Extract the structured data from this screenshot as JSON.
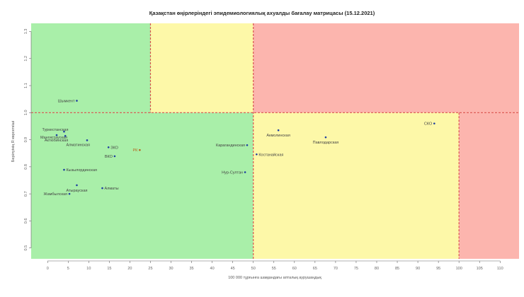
{
  "chart_data": {
    "type": "scatter",
    "title": "Қазақстан өңірлеріндегі эпидемиологиялық ахуалды бағалау матрицасы  (15.12.2021)",
    "xlabel": "100 000 тұрғынға шаққандағы апталық аурушаңдық",
    "ylabel": "Берілуінің R көрсеткіші",
    "xlim": [
      -4,
      114.6
    ],
    "ylim": [
      0.46,
      1.33
    ],
    "xticks": [
      0,
      5,
      10,
      15,
      20,
      25,
      30,
      35,
      40,
      45,
      50,
      55,
      60,
      65,
      70,
      75,
      80,
      85,
      90,
      95,
      100,
      105,
      110
    ],
    "yticks": [
      0.5,
      0.6,
      0.7,
      0.8,
      0.9,
      1.0,
      1.1,
      1.2,
      1.3
    ],
    "grid": false,
    "thresholds": {
      "r": 1.0,
      "x_upper": [
        25,
        50
      ],
      "x_lower": [
        50,
        100
      ]
    },
    "zone_colors": {
      "green": "#a9efa9",
      "yellow": "#fdf8a8",
      "red": "#fcb5ae",
      "threshold_line": "#d9534f",
      "point": "#1f3fa0",
      "rk_point": "#b5651d",
      "label": "#444444",
      "rk_label": "#b5651d"
    },
    "points": [
      {
        "label": "Шымкент",
        "x": 7.1,
        "y": 1.044
      },
      {
        "label": "Туркестанская",
        "x": 4.0,
        "y": 0.93
      },
      {
        "label": "Мангистауская",
        "x": 2.2,
        "y": 0.917
      },
      {
        "label": "Актюбинская",
        "x": 4.3,
        "y": 0.914
      },
      {
        "label": "Алматинская",
        "x": 9.6,
        "y": 0.898
      },
      {
        "label": "ЗКО",
        "x": 14.8,
        "y": 0.872
      },
      {
        "label": "РК",
        "x": 22.4,
        "y": 0.862
      },
      {
        "label": "ВКО",
        "x": 16.3,
        "y": 0.839
      },
      {
        "label": "Кызылординская",
        "x": 4.0,
        "y": 0.789
      },
      {
        "label": "Атырауская",
        "x": 7.1,
        "y": 0.732
      },
      {
        "label": "Алматы",
        "x": 13.3,
        "y": 0.721
      },
      {
        "label": "Жамбылская",
        "x": 5.3,
        "y": 0.7
      },
      {
        "label": "Карагандинская",
        "x": 48.5,
        "y": 0.88
      },
      {
        "label": "Костанайская",
        "x": 50.8,
        "y": 0.846
      },
      {
        "label": "Нур-Султан",
        "x": 48.0,
        "y": 0.78
      },
      {
        "label": "Акмолинская",
        "x": 56.1,
        "y": 0.935
      },
      {
        "label": "Павлодарская",
        "x": 67.6,
        "y": 0.909
      },
      {
        "label": "СКО",
        "x": 94.0,
        "y": 0.96
      }
    ]
  }
}
